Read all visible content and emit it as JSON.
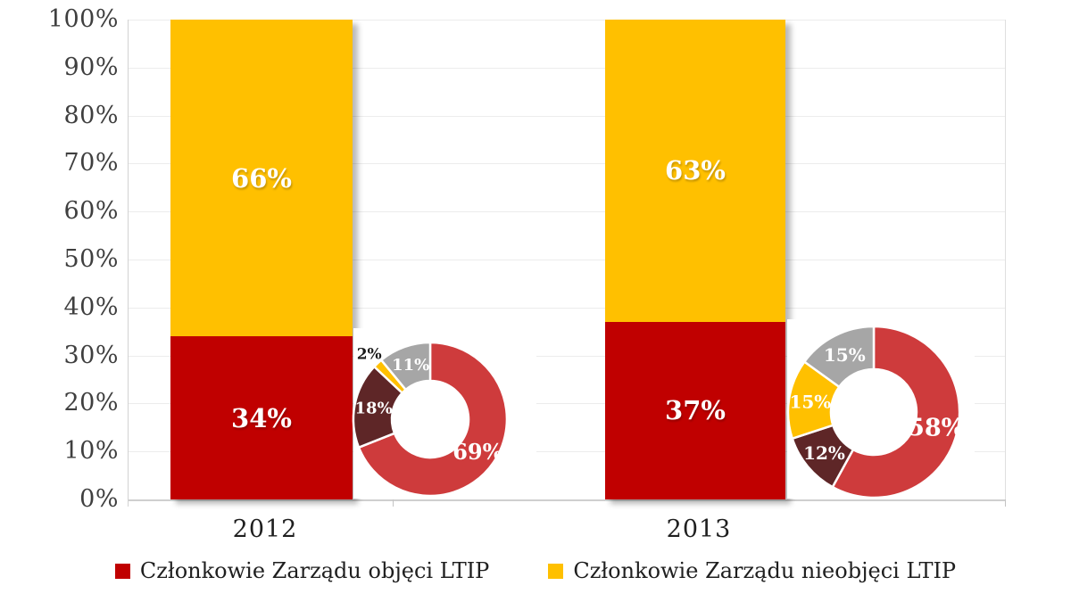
{
  "chart_data": {
    "type": "bar",
    "subtype": "stacked-percent-columns-with-donut-insets",
    "categories": [
      "2012",
      "2013"
    ],
    "series": [
      {
        "name": "Członkowie Zarządu objęci LTIP",
        "color": "#C00000",
        "values": [
          34,
          37
        ],
        "labels": [
          "34%",
          "37%"
        ]
      },
      {
        "name": "Członkowie Zarządu nieobjęci LTIP",
        "color": "#FFC000",
        "values": [
          66,
          63
        ],
        "labels": [
          "66%",
          "63%"
        ]
      }
    ],
    "ylim": [
      0,
      100
    ],
    "ytick_step": 10,
    "ytick_labels": [
      "0%",
      "10%",
      "20%",
      "30%",
      "40%",
      "50%",
      "60%",
      "70%",
      "80%",
      "90%",
      "100%"
    ],
    "grid": true,
    "legend_position": "bottom",
    "donuts": [
      {
        "category": "2012",
        "slices": [
          {
            "value": 69,
            "label": "69%",
            "color": "#CE3B3C",
            "label_placement": "inside"
          },
          {
            "value": 18,
            "label": "18%",
            "color": "#5E2627",
            "label_placement": "inside"
          },
          {
            "value": 2,
            "label": "2%",
            "color": "#FFC000",
            "label_placement": "outside"
          },
          {
            "value": 11,
            "label": "11%",
            "color": "#A6A6A6",
            "label_placement": "inside"
          }
        ]
      },
      {
        "category": "2013",
        "slices": [
          {
            "value": 58,
            "label": "58%",
            "color": "#CE3B3C",
            "label_placement": "inside"
          },
          {
            "value": 12,
            "label": "12%",
            "color": "#5E2627",
            "label_placement": "inside"
          },
          {
            "value": 15,
            "label": "15%",
            "color": "#FFC000",
            "label_placement": "inside"
          },
          {
            "value": 15,
            "label": "15%",
            "color": "#A6A6A6",
            "label_placement": "inside"
          }
        ]
      }
    ]
  },
  "legend": {
    "items": [
      {
        "label": "Członkowie Zarządu objęci LTIP",
        "color": "#C00000"
      },
      {
        "label": "Członkowie Zarządu nieobjęci LTIP",
        "color": "#FFC000"
      }
    ]
  },
  "colors": {
    "bar_label_text": "#FFFFFF",
    "inside_donut_label_text": "#FFFFFF",
    "outside_donut_label_text": "#1A1A1A",
    "axis_text": "#3F3F3F",
    "category_text": "#1F1F1F",
    "legend_text": "#1F1F1F",
    "gridline": "#ECECEC",
    "axis_line": "#CFCFCF",
    "background": "#FFFFFF"
  }
}
